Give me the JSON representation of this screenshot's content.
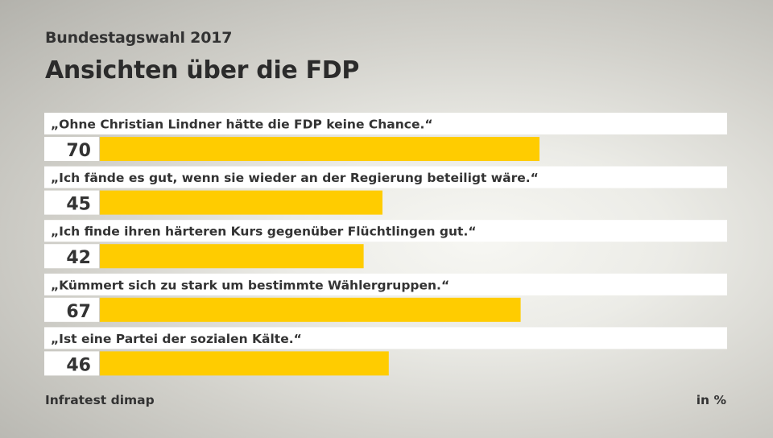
{
  "header": {
    "subtitle": "Bundestagswahl 2017",
    "title": "Ansichten über die FDP"
  },
  "footer": {
    "source": "Infratest dimap",
    "unit": "in %"
  },
  "colors": {
    "bar": "#ffcc00",
    "label_background": "#ffffff",
    "text": "#333333"
  },
  "chart_data": {
    "type": "bar",
    "orientation": "horizontal",
    "title": "Ansichten über die FDP",
    "subtitle": "Bundestagswahl 2017",
    "xlabel": "",
    "ylabel": "",
    "unit": "in %",
    "source": "Infratest dimap",
    "xlim": [
      0,
      100
    ],
    "grid": false,
    "categories": [
      "„Ohne Christian Lindner hätte die FDP keine Chance.“",
      "„Ich fände es gut, wenn sie wieder an der Regierung beteiligt wäre.“",
      "„Ich finde ihren härteren Kurs gegenüber Flüchtlingen gut.“",
      "„Kümmert sich zu stark um bestimmte Wählergruppen.“",
      "„Ist eine Partei der sozialen Kälte.“"
    ],
    "values": [
      70,
      45,
      42,
      67,
      46
    ]
  }
}
